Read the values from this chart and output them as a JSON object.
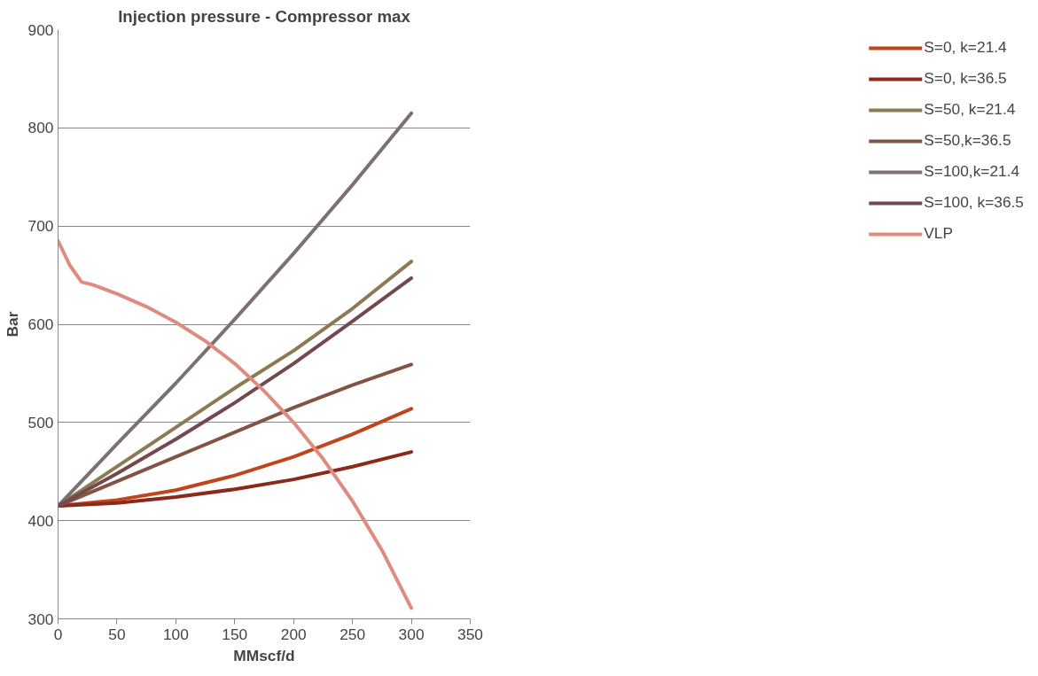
{
  "chart_data": {
    "type": "line",
    "title": "Injection pressure - Compressor max",
    "xlabel": "MMscf/d",
    "ylabel": "Bar",
    "x": [
      0,
      50,
      100,
      150,
      200,
      250,
      300
    ],
    "xlim": [
      0,
      350
    ],
    "xticks": [
      0,
      50,
      100,
      150,
      200,
      250,
      300,
      350
    ],
    "ylim": [
      300,
      900
    ],
    "yticks": [
      300,
      400,
      500,
      600,
      700,
      800,
      900
    ],
    "grid": "y",
    "legend": "right",
    "marker": "none",
    "line_style": "solid",
    "series": [
      {
        "name": "S=0, k=21.4",
        "color": "#c0441c",
        "values": [
          415,
          421,
          431,
          446,
          465,
          488,
          514
        ]
      },
      {
        "name": "S=0, k=36.5",
        "color": "#8b2a1c",
        "values": [
          415,
          418,
          424,
          432,
          442,
          455,
          470
        ]
      },
      {
        "name": "S=50, k=21.4",
        "color": "#8c7a54",
        "values": [
          415,
          455,
          495,
          535,
          573,
          616,
          664
        ]
      },
      {
        "name": "S=50,k=36.5",
        "color": "#835446",
        "values": [
          415,
          440,
          465,
          490,
          515,
          538,
          559
        ]
      },
      {
        "name": "S=100,k=21.4",
        "color": "#7f7070",
        "values": [
          415,
          478,
          540,
          605,
          672,
          742,
          815
        ]
      },
      {
        "name": "S=100, k=36.5",
        "color": "#724a4e",
        "values": [
          415,
          448,
          483,
          520,
          560,
          603,
          647
        ]
      },
      {
        "name": "VLP",
        "color": "#df8c80",
        "x": [
          0,
          10,
          20,
          30,
          50,
          75,
          100,
          125,
          150,
          175,
          200,
          225,
          250,
          275,
          300
        ],
        "values": [
          685,
          660,
          643,
          640,
          631,
          618,
          602,
          583,
          560,
          532,
          500,
          463,
          420,
          370,
          311
        ]
      }
    ]
  }
}
